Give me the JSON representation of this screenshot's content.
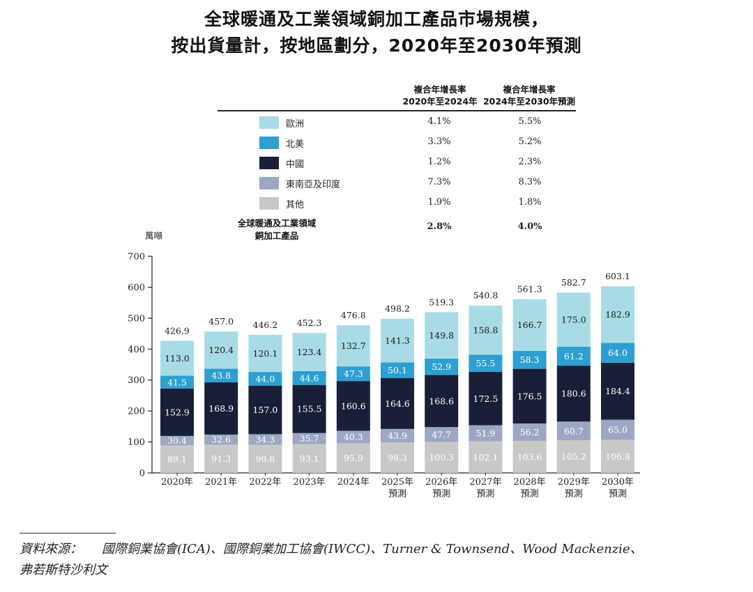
{
  "title_line1": "全球暖通及工業領域銅加工產品市場規模，",
  "title_line2": "按出貨量計，按地區劃分，2020年至2030年預測",
  "cagr_headers": [
    {
      "line1": "複合年增長率",
      "line2": "2020年至2024年"
    },
    {
      "line1": "複合年增長率",
      "line2": "2024年至2030年預測"
    }
  ],
  "colors": {
    "europe": "#a8dbe6",
    "north_america": "#2d9fd1",
    "china": "#1a1f38",
    "sea_india": "#9ba7c3",
    "other": "#c8c8c6"
  },
  "legend": [
    {
      "label": "歐洲",
      "cagr_2020_2024": "4.1%",
      "cagr_2024_2030": "5.5%",
      "color": "#a8dbe6"
    },
    {
      "label": "北美",
      "cagr_2020_2024": "3.3%",
      "cagr_2024_2030": "5.2%",
      "color": "#2d9fd1"
    },
    {
      "label": "中國",
      "cagr_2020_2024": "1.2%",
      "cagr_2024_2030": "2.3%",
      "color": "#1a1f38"
    },
    {
      "label": "東南亞及印度",
      "cagr_2020_2024": "7.3%",
      "cagr_2024_2030": "8.3%",
      "color": "#9ba7c3"
    },
    {
      "label": "其他",
      "cagr_2020_2024": "1.9%",
      "cagr_2024_2030": "1.8%",
      "color": "#c8c8c6"
    }
  ],
  "total_row": {
    "line1": "全球暖通及工業領域",
    "line2": "銅加工產品",
    "cagr_2020_2024": "2.8%",
    "cagr_2024_2030": "4.0%"
  },
  "unit_label": "萬噸",
  "chart_data": {
    "type": "bar",
    "stacked": true,
    "ylabel": "萬噸",
    "ylim": [
      0,
      700
    ],
    "yticks": [
      0,
      100,
      200,
      300,
      400,
      500,
      600,
      700
    ],
    "grid": false,
    "categories": [
      [
        "2020年"
      ],
      [
        "2021年"
      ],
      [
        "2022年"
      ],
      [
        "2023年"
      ],
      [
        "2024年"
      ],
      [
        "2025年",
        "預測"
      ],
      [
        "2026年",
        "預測"
      ],
      [
        "2027年",
        "預測"
      ],
      [
        "2028年",
        "預測"
      ],
      [
        "2029年",
        "預測"
      ],
      [
        "2030年",
        "預測"
      ]
    ],
    "series": [
      {
        "name": "其他",
        "values": [
          89.1,
          91.3,
          90.8,
          93.1,
          95.9,
          98.3,
          100.3,
          102.1,
          103.6,
          105.2,
          106.8
        ]
      },
      {
        "name": "東南亞及印度",
        "values": [
          30.4,
          32.6,
          34.3,
          35.7,
          40.3,
          43.9,
          47.7,
          51.9,
          56.2,
          60.7,
          65.0
        ]
      },
      {
        "name": "中國",
        "values": [
          152.9,
          168.9,
          157.0,
          155.5,
          160.6,
          164.6,
          168.6,
          172.5,
          176.5,
          180.6,
          184.4
        ]
      },
      {
        "name": "北美",
        "values": [
          41.5,
          43.8,
          44.0,
          44.6,
          47.3,
          50.1,
          52.9,
          55.5,
          58.3,
          61.2,
          64.0
        ]
      },
      {
        "name": "歐洲",
        "values": [
          113.0,
          120.4,
          120.1,
          123.4,
          132.7,
          141.3,
          149.8,
          158.8,
          166.7,
          175.0,
          182.9
        ]
      }
    ],
    "totals": [
      426.9,
      457.0,
      446.2,
      452.3,
      476.8,
      498.2,
      519.3,
      540.8,
      561.3,
      582.7,
      603.1
    ]
  },
  "source_label": "資料來源：",
  "source_text": "國際銅業協會(ICA)、國際銅業加工協會(IWCC)、Turner & Townsend、Wood Mackenzie、",
  "source_text2": "弗若斯特沙利文"
}
